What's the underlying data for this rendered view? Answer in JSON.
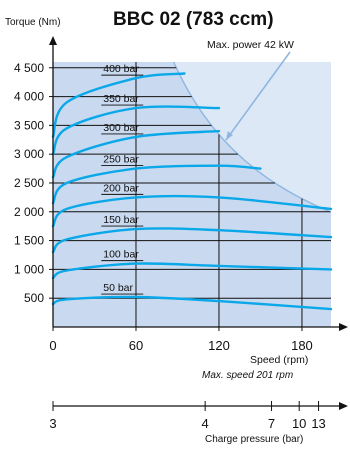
{
  "chart_data": {
    "type": "line",
    "title": "BBC 02 (783 ccm)",
    "ylabel": "Torque (Nm)",
    "xlabel": "Speed (rpm)",
    "x_note": "Max. speed 201 rpm",
    "power_label": "Max. power 42 kW",
    "xlim": [
      0,
      201
    ],
    "ylim": [
      0,
      4600
    ],
    "xticks": [
      0,
      60,
      120,
      180
    ],
    "yticks": [
      500,
      1000,
      1500,
      2000,
      2500,
      3000,
      3500,
      4000,
      4500
    ],
    "ytick_labels": [
      "500",
      "1 000",
      "1 500",
      "2 000",
      "2 500",
      "3 000",
      "3 500",
      "4 000",
      "4 500"
    ],
    "max_power_kw": 42,
    "colors": {
      "area": "#c9d9f0",
      "curve": "#0aa8e8",
      "power": "#8fb6e0",
      "grid": "#111111"
    },
    "series": [
      {
        "name": "50 bar",
        "x": [
          0,
          10,
          60,
          120,
          201
        ],
        "y": [
          400,
          480,
          520,
          450,
          310
        ]
      },
      {
        "name": "100 bar",
        "x": [
          0,
          10,
          60,
          120,
          201
        ],
        "y": [
          850,
          980,
          1100,
          1060,
          1000
        ]
      },
      {
        "name": "150 bar",
        "x": [
          0,
          10,
          60,
          120,
          201
        ],
        "y": [
          1300,
          1520,
          1700,
          1680,
          1560
        ]
      },
      {
        "name": "200 bar",
        "x": [
          0,
          10,
          60,
          120,
          201
        ],
        "y": [
          1750,
          2050,
          2250,
          2250,
          2050
        ]
      },
      {
        "name": "250 bar",
        "x": [
          0,
          10,
          60,
          120,
          150
        ],
        "y": [
          2150,
          2500,
          2750,
          2800,
          2750
        ]
      },
      {
        "name": "300 bar",
        "x": [
          0,
          10,
          60,
          120
        ],
        "y": [
          2600,
          2950,
          3300,
          3400
        ]
      },
      {
        "name": "350 bar",
        "x": [
          0,
          10,
          60,
          120
        ],
        "y": [
          3000,
          3450,
          3800,
          3800
        ]
      },
      {
        "name": "400 bar",
        "x": [
          0,
          10,
          60,
          95
        ],
        "y": [
          3300,
          3900,
          4320,
          4400
        ]
      }
    ],
    "secondary_axis": {
      "label": "Charge pressure (bar)",
      "ticks": [
        {
          "label": "3",
          "speed": 0
        },
        {
          "label": "4",
          "speed": 110
        },
        {
          "label": "7",
          "speed": 158
        },
        {
          "label": "10",
          "speed": 178
        },
        {
          "label": "13",
          "speed": 192
        }
      ]
    }
  }
}
